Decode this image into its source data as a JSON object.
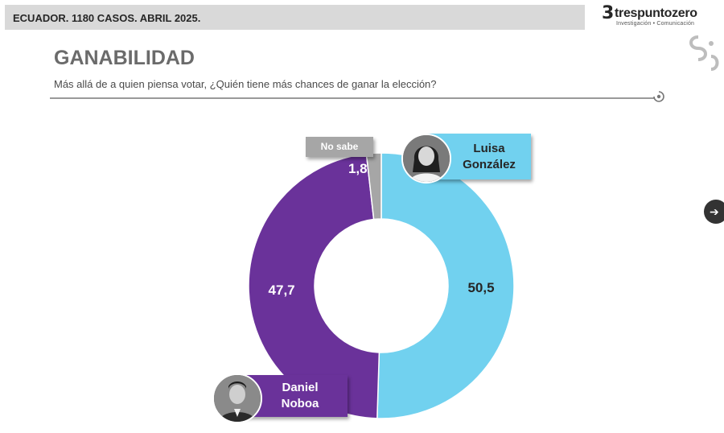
{
  "header": {
    "banner": "ECUADOR. 1180 CASOS. ABRIL 2025.",
    "logo_name": "trespuntozero",
    "logo_tagline": "Investigación • Comunicación"
  },
  "page": {
    "title": "GANABILIDAD",
    "subtitle": "Más allá de a quien piensa votar, ¿Quién tiene más chances de ganar la elección?"
  },
  "chart_data": {
    "type": "pie",
    "donut": true,
    "slices": [
      {
        "label": "Luisa González",
        "value": 50.5,
        "display": "50,5",
        "color": "#71d1ef"
      },
      {
        "label": "Daniel Noboa",
        "value": 47.7,
        "display": "47,7",
        "color": "#6a329a"
      },
      {
        "label": "No sabe",
        "value": 1.8,
        "display": "1,8",
        "color": "#a6a6a6"
      }
    ]
  },
  "labels": {
    "gonzalez_line1": "Luisa",
    "gonzalez_line2": "González",
    "noboa_line1": "Daniel",
    "noboa_line2": "Noboa",
    "nosabe": "No sabe"
  }
}
